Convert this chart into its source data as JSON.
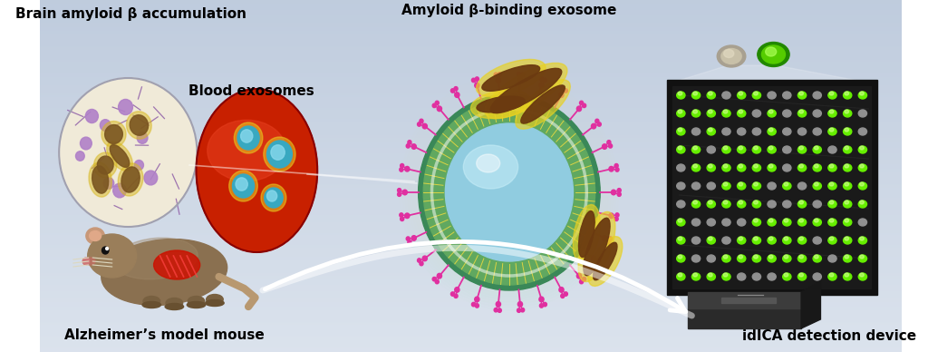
{
  "bg_color_top": "#b8c4d4",
  "bg_color_bottom": "#d0d8e4",
  "title_brain": "Brain amyloid β accumulation",
  "title_blood": "Blood exosomes",
  "title_exosome": "Amyloid β-binding exosome",
  "title_mouse": "Alzheimer’s model mouse",
  "title_device": "idICA detection device",
  "label_fontsize": 11,
  "fig_width": 10.24,
  "fig_height": 3.88
}
